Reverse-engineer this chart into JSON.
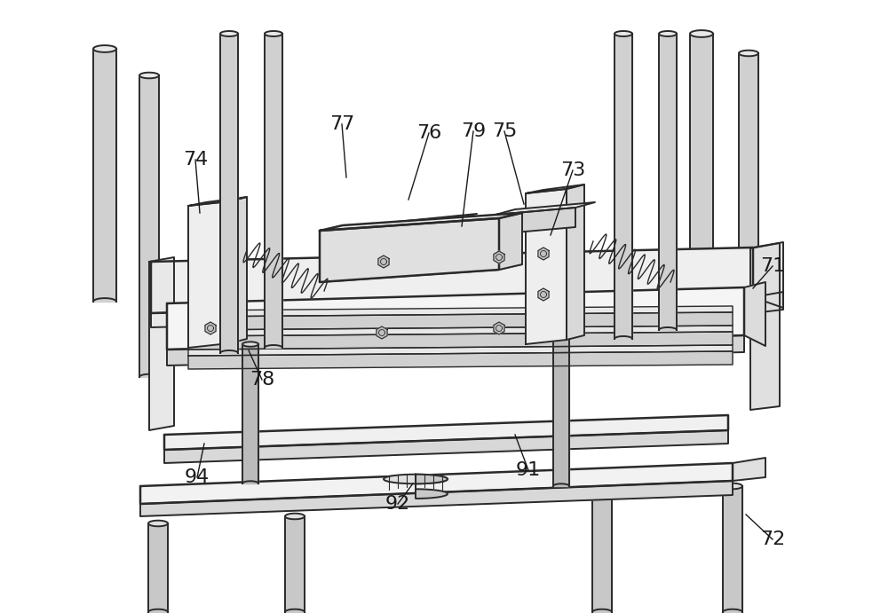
{
  "bg_color": "#ffffff",
  "line_color": "#2a2a2a",
  "line_width": 1.4,
  "fig_width": 10.0,
  "fig_height": 6.91,
  "labels": [
    [
      "74",
      220,
      180,
      225,
      240
    ],
    [
      "77",
      385,
      140,
      390,
      200
    ],
    [
      "76",
      483,
      150,
      460,
      225
    ],
    [
      "79",
      533,
      148,
      520,
      255
    ],
    [
      "75",
      568,
      148,
      590,
      230
    ],
    [
      "73",
      645,
      192,
      620,
      265
    ],
    [
      "71",
      870,
      300,
      848,
      325
    ],
    [
      "72",
      870,
      608,
      840,
      580
    ],
    [
      "78",
      295,
      428,
      280,
      395
    ],
    [
      "91",
      595,
      530,
      580,
      490
    ],
    [
      "92",
      448,
      568,
      465,
      545
    ],
    [
      "94",
      222,
      538,
      230,
      500
    ]
  ]
}
